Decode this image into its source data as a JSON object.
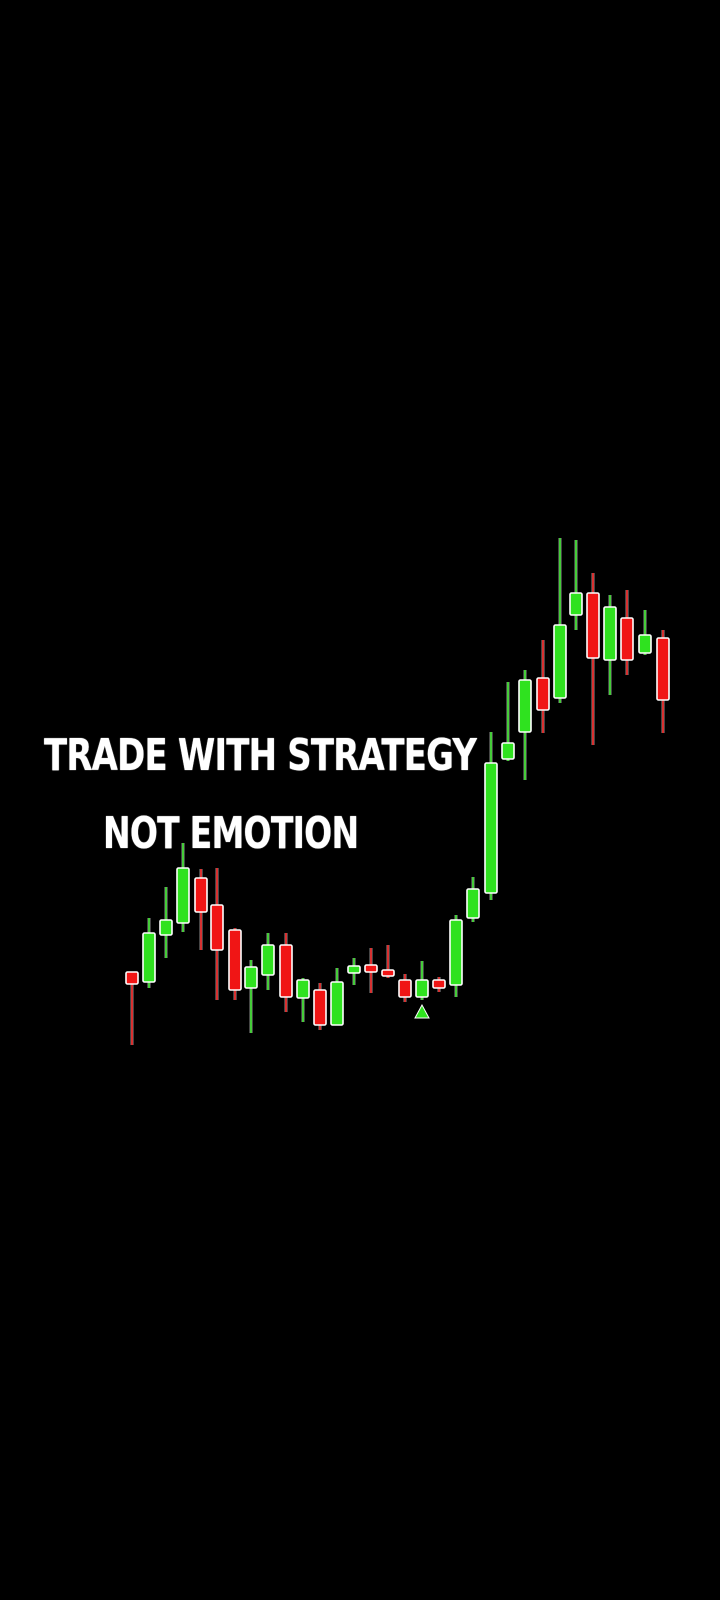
{
  "headline": {
    "line1": "TRADE WITH STRATEGY",
    "line2": "NOT  EMOTION"
  },
  "colors": {
    "background": "#000000",
    "text": "#ffffff",
    "bullish": "#2fe21f",
    "bearish": "#f01515",
    "outline": "#ffffff"
  },
  "icons": {
    "signal": "up-triangle-icon"
  }
}
